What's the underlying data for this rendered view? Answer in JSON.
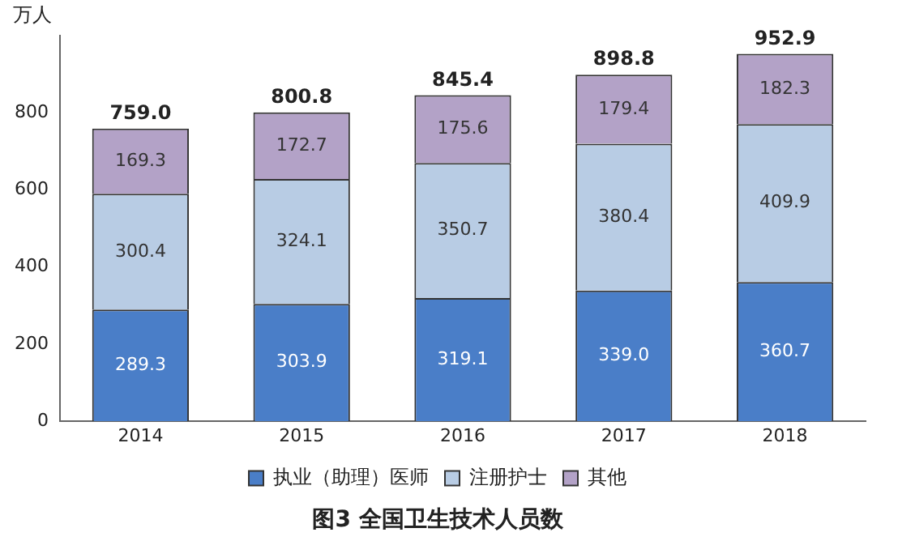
{
  "chart_data": {
    "type": "bar",
    "stacked": true,
    "title": "图3 全国卫生技术人员数",
    "ylabel": "万人",
    "categories": [
      "2014",
      "2015",
      "2016",
      "2017",
      "2018"
    ],
    "series": [
      {
        "name": "执业（助理）医师",
        "color": "#4a7ec8",
        "values": [
          289.3,
          303.9,
          319.1,
          339.0,
          360.7
        ],
        "value_labels": [
          "289.3",
          "303.9",
          "319.1",
          "339.0",
          "360.7"
        ]
      },
      {
        "name": "注册护士",
        "color": "#b8cce4",
        "values": [
          300.4,
          324.1,
          350.7,
          380.4,
          409.9
        ],
        "value_labels": [
          "300.4",
          "324.1",
          "350.7",
          "380.4",
          "409.9"
        ]
      },
      {
        "name": "其他",
        "color": "#b3a2c7",
        "values": [
          169.3,
          172.7,
          175.6,
          179.4,
          182.3
        ],
        "value_labels": [
          "169.3",
          "172.7",
          "175.6",
          "179.4",
          "182.3"
        ]
      }
    ],
    "totals": [
      "759.0",
      "800.8",
      "845.4",
      "898.8",
      "952.9"
    ],
    "ylim": [
      0,
      1000
    ],
    "yticks": [
      0,
      200,
      400,
      600,
      800
    ],
    "grid": false,
    "legend": "bottom"
  }
}
